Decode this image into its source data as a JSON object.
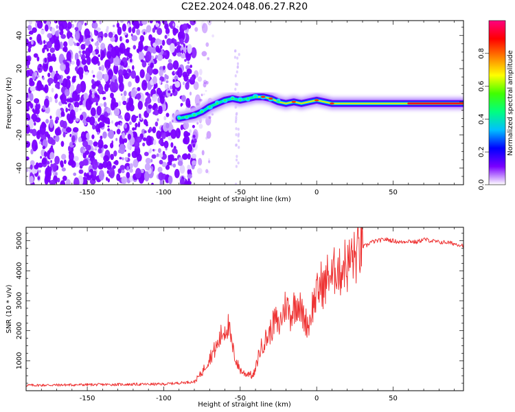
{
  "title": "C2E2.2024.048.06.27.R20",
  "chart_data": [
    {
      "type": "heatmap",
      "xlabel": "Height of straight line (km)",
      "ylabel": "Frequency (Hz)",
      "xlim": [
        -190,
        96
      ],
      "ylim": [
        -50,
        49
      ],
      "x_ticks": [
        -150,
        -100,
        -50,
        0,
        50
      ],
      "y_ticks": [
        -40,
        -20,
        0,
        20,
        40
      ],
      "colorbar": {
        "label": "Normalized spectral amplitude",
        "range": [
          0,
          1
        ],
        "ticks": [
          "0.0",
          "0.2",
          "0.4",
          "0.6",
          "0.8"
        ],
        "tick_values": [
          0,
          0.2,
          0.4,
          0.6,
          0.8
        ],
        "colors": [
          "#ffffff",
          "#7a00ff",
          "#0000ff",
          "#00bfff",
          "#00ff80",
          "#40ff00",
          "#ffff00",
          "#ff8000",
          "#ff0000",
          "#ff0080"
        ]
      },
      "noise_region_x": [
        -190,
        -80
      ],
      "ridge": [
        {
          "x": -90,
          "y": -10
        },
        {
          "x": -85,
          "y": -9
        },
        {
          "x": -80,
          "y": -8
        },
        {
          "x": -75,
          "y": -6
        },
        {
          "x": -70,
          "y": -3
        },
        {
          "x": -65,
          "y": -1
        },
        {
          "x": -60,
          "y": 1
        },
        {
          "x": -55,
          "y": 2
        },
        {
          "x": -50,
          "y": 1
        },
        {
          "x": -45,
          "y": 2
        },
        {
          "x": -40,
          "y": 3
        },
        {
          "x": -35,
          "y": 3
        },
        {
          "x": -30,
          "y": 2
        },
        {
          "x": -25,
          "y": 0
        },
        {
          "x": -20,
          "y": -1
        },
        {
          "x": -15,
          "y": 0
        },
        {
          "x": -10,
          "y": -1
        },
        {
          "x": -5,
          "y": 0
        },
        {
          "x": 0,
          "y": 1
        },
        {
          "x": 5,
          "y": 0
        },
        {
          "x": 10,
          "y": -1
        },
        {
          "x": 20,
          "y": -1
        },
        {
          "x": 30,
          "y": -1
        },
        {
          "x": 40,
          "y": -1
        },
        {
          "x": 50,
          "y": -1
        },
        {
          "x": 60,
          "y": -1
        },
        {
          "x": 70,
          "y": -1
        },
        {
          "x": 80,
          "y": -1
        },
        {
          "x": 96,
          "y": -1
        }
      ]
    },
    {
      "type": "line",
      "xlabel": "Height of straight line (km)",
      "ylabel": "SNR (10 * v/v)",
      "xlim": [
        -190,
        96
      ],
      "ylim": [
        0,
        5450
      ],
      "x_ticks": [
        -150,
        -100,
        -50,
        0,
        50
      ],
      "y_ticks": [
        1000,
        2000,
        3000,
        4000,
        5000
      ],
      "color": "#ee3333",
      "series": [
        {
          "x": [
            -190,
            -150,
            -100,
            -80,
            -75,
            -70,
            -65,
            -62,
            -58,
            -55,
            -52,
            -50,
            -48,
            -46,
            -44,
            -42,
            -40,
            -38,
            -35,
            -32,
            -30,
            -27,
            -25,
            -22,
            -20,
            -17,
            -15,
            -12,
            -10,
            -7,
            -5,
            -3,
            0,
            3,
            5,
            8,
            10,
            13,
            15,
            18,
            20,
            23,
            25,
            28,
            30,
            33,
            35,
            40,
            45,
            50,
            55,
            60,
            65,
            70,
            75,
            80,
            85,
            90,
            96
          ],
          "values": [
            180,
            200,
            220,
            300,
            600,
            1100,
            1500,
            1900,
            2200,
            1400,
            900,
            700,
            600,
            550,
            600,
            450,
            700,
            1200,
            1600,
            1800,
            2000,
            2400,
            2100,
            2600,
            2900,
            2500,
            2800,
            3000,
            2600,
            2300,
            2200,
            2800,
            3200,
            3600,
            3400,
            4000,
            3700,
            4200,
            3900,
            4300,
            4100,
            4500,
            4400,
            4700,
            4800,
            4850,
            4950,
            5000,
            5050,
            5000,
            4950,
            5000,
            4950,
            5050,
            5000,
            4950,
            4950,
            4900,
            4850
          ]
        }
      ]
    }
  ]
}
